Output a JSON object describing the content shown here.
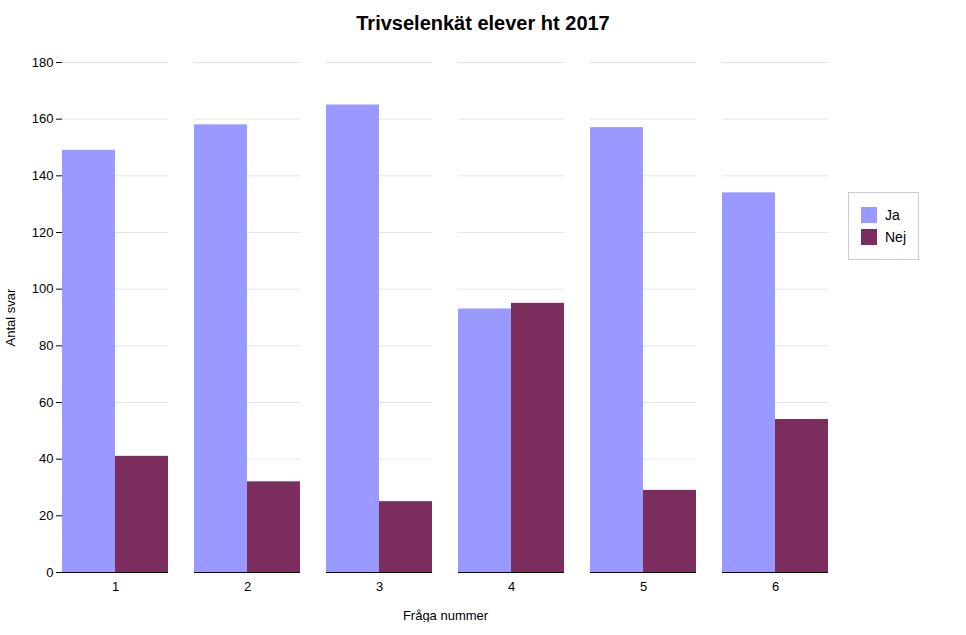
{
  "chart_data": {
    "type": "bar",
    "title": "Trivselenkät elever ht 2017",
    "xlabel": "Fråga nummer",
    "ylabel": "Antal svar",
    "categories": [
      1,
      2,
      3,
      4,
      5,
      6
    ],
    "series": [
      {
        "name": "Ja",
        "color": "#9999FF",
        "values": [
          149,
          158,
          165,
          93,
          157,
          134
        ]
      },
      {
        "name": "Nej",
        "color": "#7B2D5E",
        "values": [
          41,
          32,
          25,
          95,
          29,
          54
        ]
      }
    ],
    "ylim": [
      0,
      180
    ],
    "yticks": [
      0,
      20,
      40,
      60,
      80,
      100,
      120,
      140,
      160,
      180
    ],
    "grid": true,
    "legend": "right"
  }
}
